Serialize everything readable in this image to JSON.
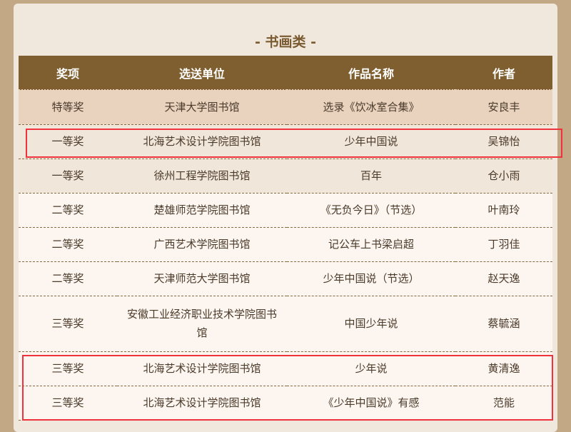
{
  "section_title": "- 书画类 -",
  "headers": [
    "奖项",
    "选送单位",
    "作品名称",
    "作者"
  ],
  "rows": [
    [
      "特等奖",
      "天津大学图书馆",
      "选录《饮冰室合集》",
      "安良丰"
    ],
    [
      "一等奖",
      "北海艺术设计学院图书馆",
      "少年中国说",
      "吴锦怡"
    ],
    [
      "一等奖",
      "徐州工程学院图书馆",
      "百年",
      "仓小雨"
    ],
    [
      "二等奖",
      "楚雄师范学院图书馆",
      "《无负今日》（节选）",
      "叶南玲"
    ],
    [
      "二等奖",
      "广西艺术学院图书馆",
      "记公车上书梁启超",
      "丁羽佳"
    ],
    [
      "二等奖",
      "天津师范大学图书馆",
      "少年中国说（节选）",
      "赵天逸"
    ],
    [
      "三等奖",
      "安徽工业经济职业技术学院图书馆",
      "中国少年说",
      "蔡毓涵"
    ],
    [
      "三等奖",
      "北海艺术设计学院图书馆",
      "少年说",
      "黄清逸"
    ],
    [
      "三等奖",
      "北海艺术设计学院图书馆",
      "《少年中国说》有感",
      "范能"
    ]
  ],
  "colors": {
    "header_bg": "#7f5f30",
    "highlight_border": "#f0323c",
    "page_bg": "#c3a886"
  }
}
